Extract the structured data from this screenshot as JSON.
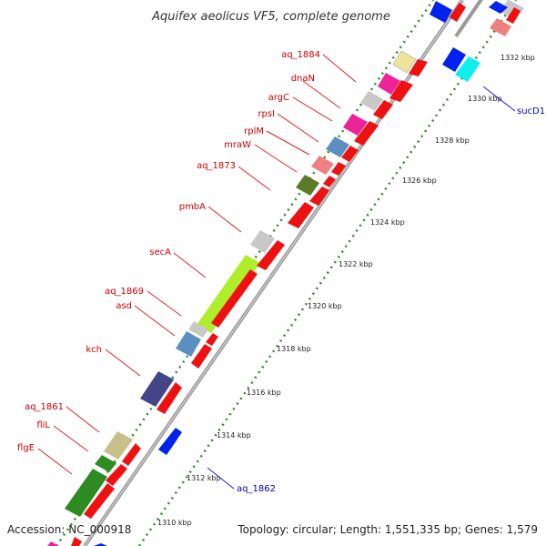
{
  "title": "Aquifex aeolicus VF5, complete genome",
  "footer": {
    "accession": "Accession: NC_000918",
    "topology": "Topology: circular; Length: 1,551,335 bp; Genes: 1,579"
  },
  "colors": {
    "background": "#ffffff",
    "backbone": "#9a9a9a",
    "tick_marks": "#2e8b22",
    "label_red": "#cc0000",
    "label_blue": "#0000bb",
    "leader_red": "#e02020",
    "leader_blue": "#1a1ad0"
  },
  "tick_labels": [
    {
      "kbp": 1310,
      "text": "1310 kbp"
    },
    {
      "kbp": 1312,
      "text": "1312 kbp"
    },
    {
      "kbp": 1314,
      "text": "1314 kbp"
    },
    {
      "kbp": 1316,
      "text": "1316 kbp"
    },
    {
      "kbp": 1318,
      "text": "1318 kbp"
    },
    {
      "kbp": 1320,
      "text": "1320 kbp"
    },
    {
      "kbp": 1322,
      "text": "1322 kbp"
    },
    {
      "kbp": 1324,
      "text": "1324 kbp"
    },
    {
      "kbp": 1326,
      "text": "1326 kbp"
    },
    {
      "kbp": 1328,
      "text": "1328 kbp"
    },
    {
      "kbp": 1330,
      "text": "1330 kbp"
    },
    {
      "kbp": 1332,
      "text": "1332 kbp"
    }
  ],
  "gene_labels": [
    {
      "text": "aq_1884",
      "color": "label_red"
    },
    {
      "text": "dnaN",
      "color": "label_red"
    },
    {
      "text": "argC",
      "color": "label_red"
    },
    {
      "text": "rpsI",
      "color": "label_red"
    },
    {
      "text": "rplM",
      "color": "label_red"
    },
    {
      "text": "mraW",
      "color": "label_red"
    },
    {
      "text": "aq_1873",
      "color": "label_red"
    },
    {
      "text": "pmbA",
      "color": "label_red"
    },
    {
      "text": "secA",
      "color": "label_red"
    },
    {
      "text": "aq_1869",
      "color": "label_red"
    },
    {
      "text": "asd",
      "color": "label_red"
    },
    {
      "text": "kch",
      "color": "label_red"
    },
    {
      "text": "aq_1861",
      "color": "label_red"
    },
    {
      "text": "fliL",
      "color": "label_red"
    },
    {
      "text": "flgE",
      "color": "label_red"
    },
    {
      "text": "aq_1862",
      "color": "label_blue"
    },
    {
      "text": "sucD1",
      "color": "label_blue"
    }
  ]
}
